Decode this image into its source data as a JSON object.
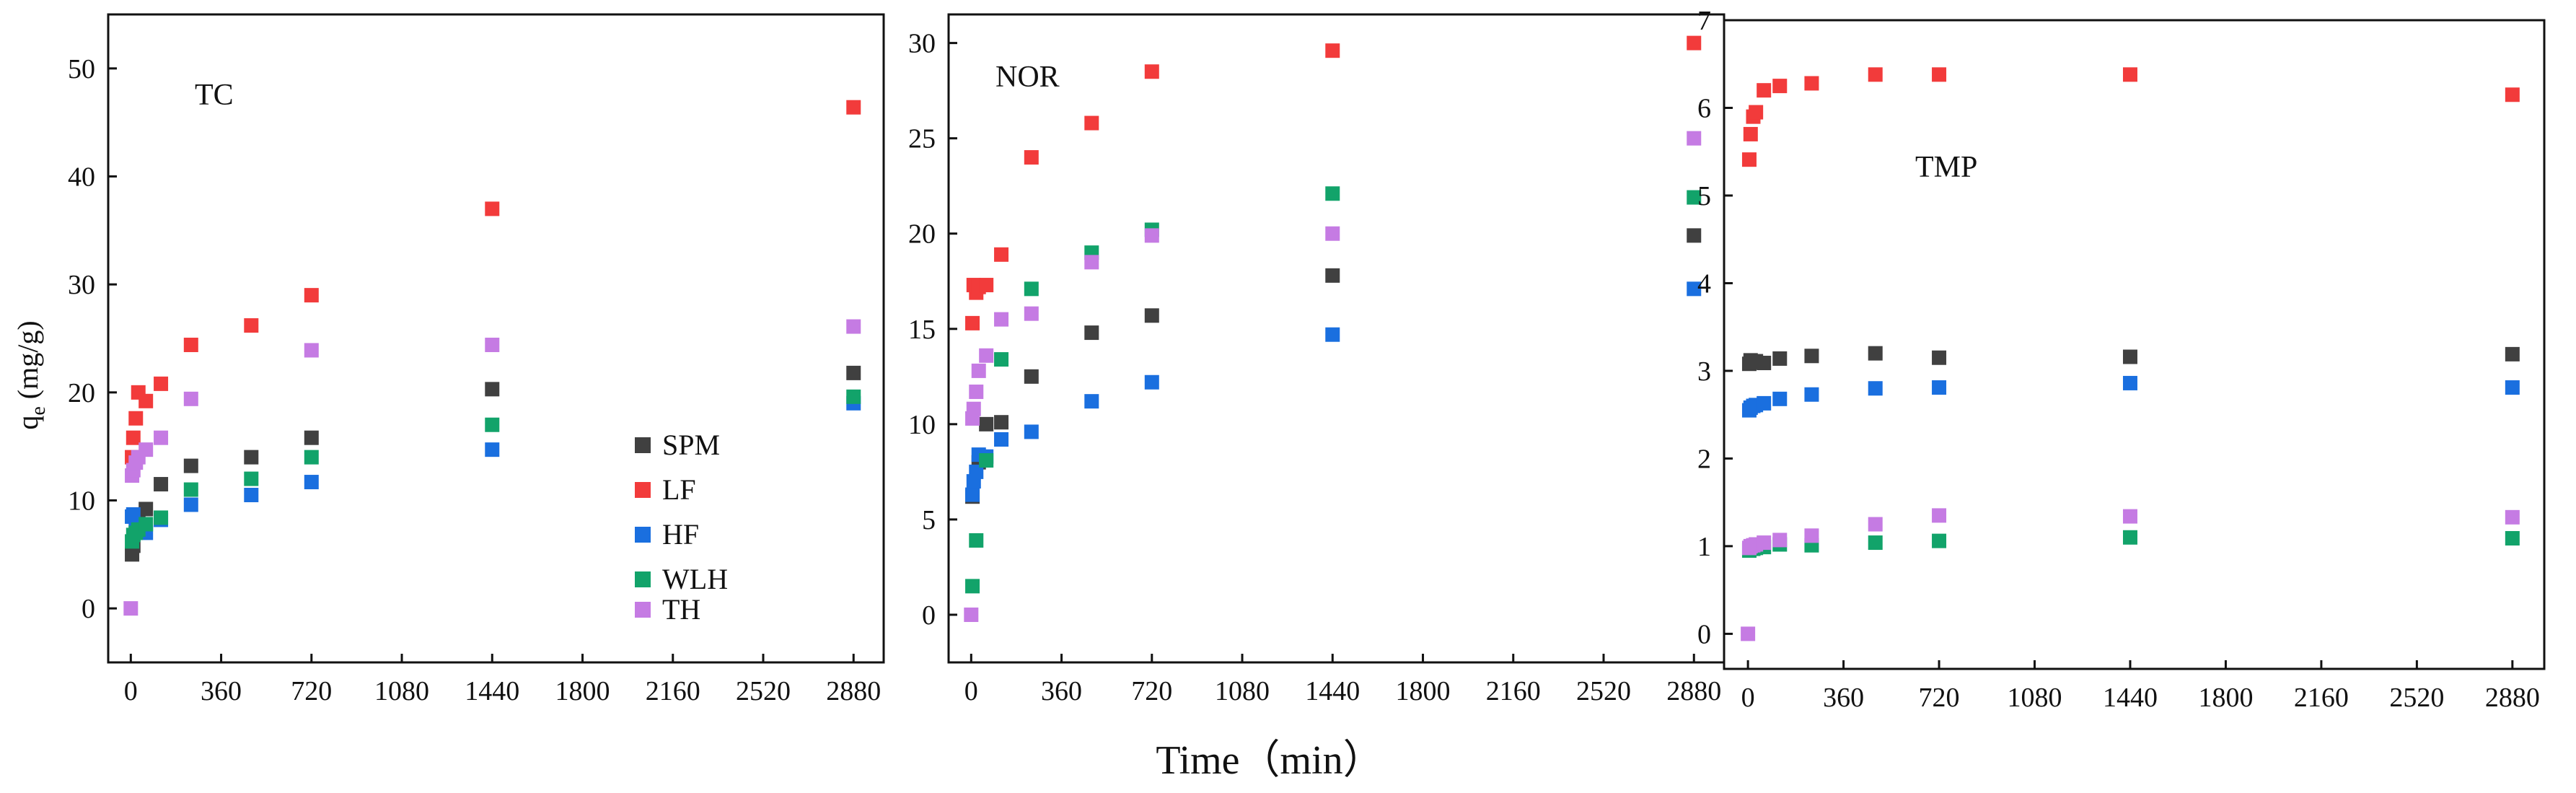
{
  "x_axis_title": "Time（min）",
  "y_axis_title": {
    "main": "q",
    "sub": "e",
    "unit": " (mg/g)"
  },
  "legend": [
    {
      "name": "SPM",
      "color": "#404040"
    },
    {
      "name": "LF",
      "color": "#f23b3b"
    },
    {
      "name": "HF",
      "color": "#1a6fdf"
    },
    {
      "name": "WLH",
      "color": "#12a36a"
    },
    {
      "name": "TH",
      "color": "#c57be3"
    }
  ],
  "chart_data": [
    {
      "type": "scatter",
      "title": "TC",
      "xlabel": "Time（min）",
      "ylabel": "qe (mg/g)",
      "xlim": [
        -90,
        3000
      ],
      "ylim": [
        -5,
        55
      ],
      "xticks": [
        0,
        360,
        720,
        1080,
        1440,
        1800,
        2160,
        2520,
        2880
      ],
      "yticks": [
        0,
        10,
        20,
        30,
        40,
        50
      ],
      "series": [
        {
          "name": "SPM",
          "color": "#404040",
          "x": [
            5,
            10,
            30,
            60,
            120,
            240,
            480,
            720,
            1440,
            2880
          ],
          "y": [
            5,
            5.8,
            8.5,
            9.2,
            11.5,
            13.2,
            14,
            15.8,
            20.3,
            21.8
          ]
        },
        {
          "name": "LF",
          "color": "#f23b3b",
          "x": [
            5,
            10,
            20,
            30,
            60,
            120,
            240,
            480,
            720,
            1440,
            2880
          ],
          "y": [
            14,
            15.8,
            17.6,
            20,
            19.2,
            20.8,
            24.4,
            26.2,
            29,
            37,
            46.4
          ]
        },
        {
          "name": "HF",
          "color": "#1a6fdf",
          "x": [
            5,
            10,
            20,
            30,
            60,
            120,
            240,
            480,
            720,
            1440,
            2880
          ],
          "y": [
            8.5,
            8.7,
            7.2,
            7.6,
            7,
            8.2,
            9.6,
            10.5,
            11.7,
            14.7,
            19
          ]
        },
        {
          "name": "WLH",
          "color": "#12a36a",
          "x": [
            5,
            10,
            20,
            30,
            60,
            120,
            240,
            480,
            720,
            1440,
            2880
          ],
          "y": [
            6.2,
            6.8,
            7,
            7.3,
            7.8,
            8.4,
            11,
            12,
            14,
            17,
            19.6
          ]
        },
        {
          "name": "TH",
          "color": "#c57be3",
          "x": [
            0,
            5,
            10,
            20,
            30,
            60,
            120,
            240,
            720,
            1440,
            2880
          ],
          "y": [
            0,
            12.3,
            12.8,
            13.5,
            14,
            14.7,
            15.8,
            19.4,
            23.9,
            24.4,
            26.1
          ]
        }
      ]
    },
    {
      "type": "scatter",
      "title": "NOR",
      "xlabel": "Time（min）",
      "ylabel": "",
      "xlim": [
        -90,
        3000
      ],
      "ylim": [
        -2.5,
        31.5
      ],
      "xticks": [
        0,
        360,
        720,
        1080,
        1440,
        1800,
        2160,
        2520,
        2880
      ],
      "yticks": [
        0,
        5,
        10,
        15,
        20,
        25,
        30
      ],
      "series": [
        {
          "name": "SPM",
          "color": "#404040",
          "x": [
            5,
            30,
            60,
            120,
            240,
            480,
            720,
            1440,
            2880
          ],
          "y": [
            6.2,
            8,
            10,
            10.1,
            12.5,
            14.8,
            15.7,
            17.8,
            19.9
          ]
        },
        {
          "name": "LF",
          "color": "#f23b3b",
          "x": [
            5,
            10,
            20,
            30,
            60,
            120,
            240,
            480,
            720,
            1440,
            2880
          ],
          "y": [
            15.3,
            17.3,
            16.9,
            17.2,
            17.3,
            18.9,
            24,
            25.8,
            28.5,
            29.6,
            30
          ]
        },
        {
          "name": "HF",
          "color": "#1a6fdf",
          "x": [
            5,
            10,
            20,
            30,
            60,
            120,
            240,
            480,
            720,
            1440,
            2880
          ],
          "y": [
            6.3,
            7,
            7.5,
            8.4,
            8.3,
            9.2,
            9.6,
            11.2,
            12.2,
            14.7,
            17.1
          ]
        },
        {
          "name": "WLH",
          "color": "#12a36a",
          "x": [
            5,
            20,
            60,
            120,
            240,
            480,
            720,
            1440,
            2880
          ],
          "y": [
            1.5,
            3.9,
            8.1,
            13.4,
            17.1,
            19,
            20.2,
            22.1,
            21.9
          ]
        },
        {
          "name": "TH",
          "color": "#c57be3",
          "x": [
            0,
            5,
            10,
            20,
            30,
            60,
            120,
            240,
            480,
            720,
            1440,
            2880
          ],
          "y": [
            0,
            10.3,
            10.8,
            11.7,
            12.8,
            13.6,
            15.5,
            15.8,
            18.5,
            19.9,
            20,
            25
          ]
        }
      ]
    },
    {
      "type": "scatter",
      "title": "TMP",
      "xlabel": "Time（min）",
      "ylabel": "",
      "xlim": [
        -90,
        3000
      ],
      "ylim": [
        -0.4,
        7
      ],
      "xticks": [
        0,
        360,
        720,
        1080,
        1440,
        1800,
        2160,
        2520,
        2880
      ],
      "yticks": [
        0,
        1,
        2,
        3,
        4,
        5,
        6,
        7
      ],
      "series": [
        {
          "name": "SPM",
          "color": "#404040",
          "x": [
            5,
            10,
            20,
            30,
            60,
            120,
            240,
            480,
            720,
            1440,
            2880
          ],
          "y": [
            3.08,
            3.12,
            3.1,
            3.11,
            3.09,
            3.14,
            3.17,
            3.2,
            3.15,
            3.16,
            3.19
          ]
        },
        {
          "name": "LF",
          "color": "#f23b3b",
          "x": [
            5,
            10,
            20,
            30,
            60,
            120,
            240,
            480,
            720,
            1440,
            2880
          ],
          "y": [
            5.41,
            5.7,
            5.9,
            5.95,
            6.2,
            6.25,
            6.28,
            6.38,
            6.38,
            6.38,
            6.15
          ]
        },
        {
          "name": "HF",
          "color": "#1a6fdf",
          "x": [
            5,
            10,
            20,
            30,
            60,
            120,
            240,
            480,
            720,
            1440,
            2880
          ],
          "y": [
            2.55,
            2.58,
            2.6,
            2.61,
            2.63,
            2.68,
            2.73,
            2.8,
            2.81,
            2.86,
            2.81
          ]
        },
        {
          "name": "WLH",
          "color": "#12a36a",
          "x": [
            5,
            10,
            20,
            30,
            60,
            120,
            240,
            480,
            720,
            1440,
            2880
          ],
          "y": [
            0.95,
            0.97,
            0.97,
            0.98,
            0.99,
            1.02,
            1.01,
            1.04,
            1.06,
            1.1,
            1.09
          ]
        },
        {
          "name": "TH",
          "color": "#c57be3",
          "x": [
            0,
            5,
            10,
            20,
            30,
            60,
            120,
            240,
            480,
            720,
            1440,
            2880
          ],
          "y": [
            0,
            0.98,
            1,
            1.01,
            1.02,
            1.04,
            1.07,
            1.12,
            1.25,
            1.35,
            1.34,
            1.33
          ]
        }
      ]
    }
  ]
}
